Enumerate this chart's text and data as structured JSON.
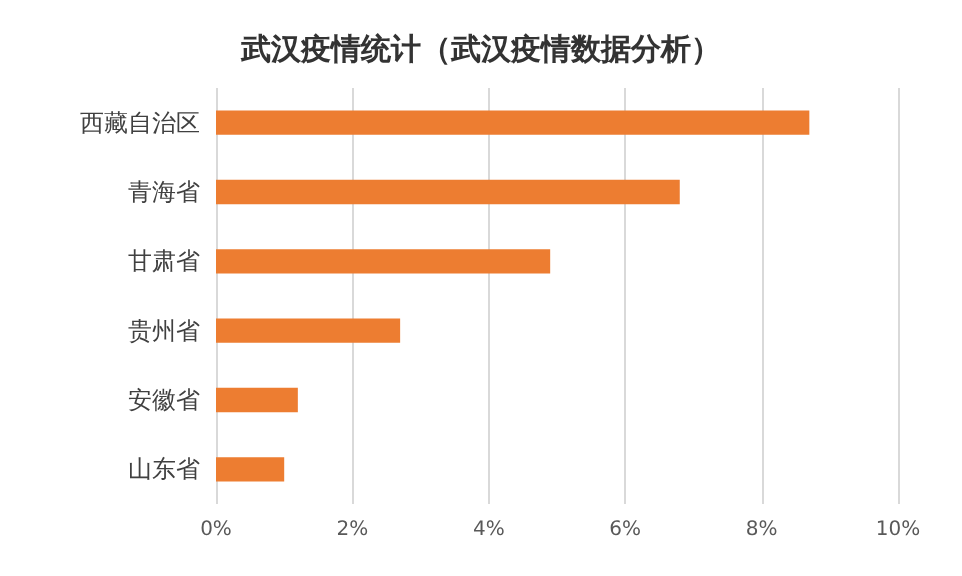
{
  "chart_data": {
    "type": "bar",
    "orientation": "horizontal",
    "title": "武汉疫情统计（武汉疫情数据分析）",
    "categories": [
      "西藏自治区",
      "青海省",
      "甘肃省",
      "贵州省",
      "安徽省",
      "山东省"
    ],
    "values": [
      8.7,
      6.8,
      4.9,
      2.7,
      1.2,
      1.0
    ],
    "color": "#ed7d31",
    "xlim": [
      0,
      10
    ],
    "xticks": [
      {
        "value": 0,
        "label": "0%"
      },
      {
        "value": 2,
        "label": "2%"
      },
      {
        "value": 4,
        "label": "4%"
      },
      {
        "value": 6,
        "label": "6%"
      },
      {
        "value": 8,
        "label": "8%"
      },
      {
        "value": 10,
        "label": "10%"
      }
    ],
    "grid": "x"
  }
}
